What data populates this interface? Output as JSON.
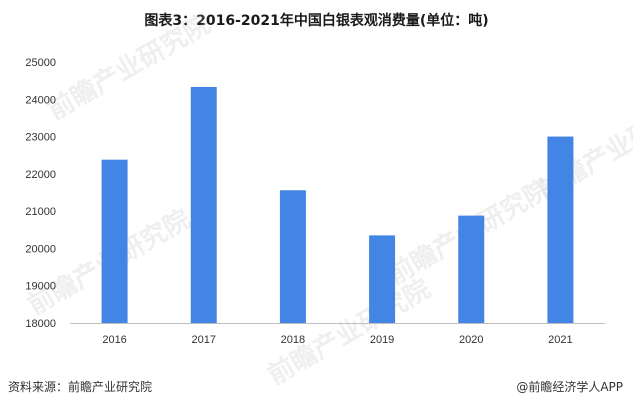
{
  "title": "图表3：2016-2021年中国白银表观消费量(单位：吨)",
  "source_text": "资料来源：前瞻产业研究院",
  "brand_text": "@前瞻经济学人APP",
  "watermark_text": "前瞻产业研究院",
  "colors": {
    "bar": "#4285e4",
    "axis": "#bfbfbf",
    "text": "#333333"
  },
  "chart_data": {
    "type": "bar",
    "title": "图表3：2016-2021年中国白银表观消费量(单位：吨)",
    "xlabel": "",
    "ylabel": "",
    "categories": [
      "2016",
      "2017",
      "2018",
      "2019",
      "2020",
      "2021"
    ],
    "values": [
      22380,
      24330,
      21560,
      20350,
      20880,
      23000
    ],
    "ylim": [
      18000,
      25000
    ],
    "yticks": [
      18000,
      19000,
      20000,
      21000,
      22000,
      23000,
      24000,
      25000
    ],
    "grid": false,
    "legend": "none"
  }
}
